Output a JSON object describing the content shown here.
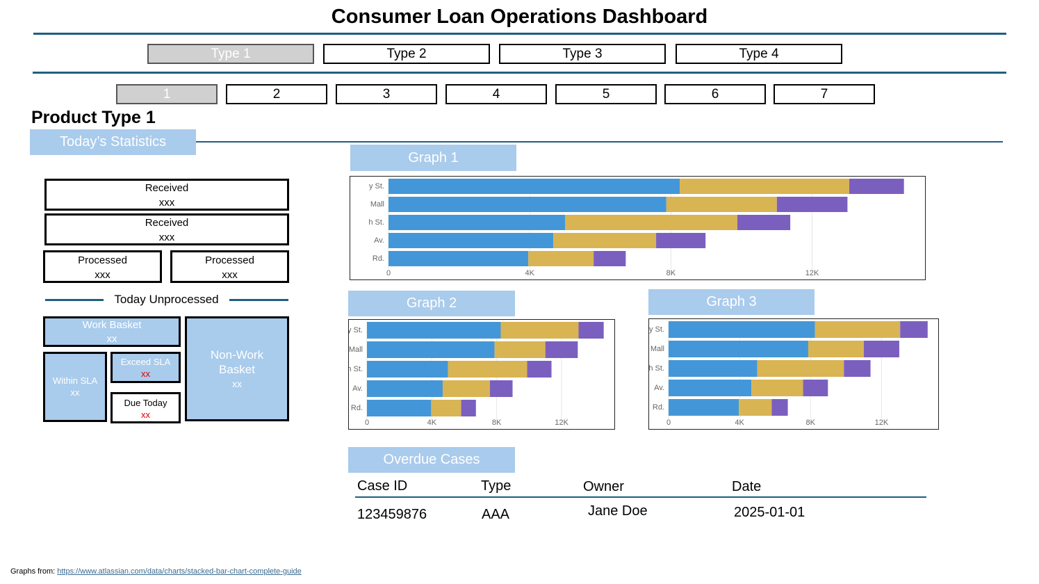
{
  "header": {
    "title": "Consumer Loan Operations Dashboard"
  },
  "type_tabs": [
    "Type 1",
    "Type 2",
    "Type 3",
    "Type 4"
  ],
  "number_tabs": [
    "1",
    "2",
    "3",
    "4",
    "5",
    "6",
    "7"
  ],
  "section": {
    "title": "Product Type 1",
    "statistics_label": "Today’s Statistics"
  },
  "stats": {
    "received": [
      {
        "label": "Received",
        "value": "xxx"
      },
      {
        "label": "Received",
        "value": "xxx"
      }
    ],
    "processed": [
      {
        "label": "Processed",
        "value": "xxx"
      },
      {
        "label": "Processed",
        "value": "xxx"
      }
    ],
    "unprocessed_label": "Today Unprocessed",
    "work_basket": {
      "label": "Work Basket",
      "value": "xx"
    },
    "within_sla": {
      "label": "Within SLA",
      "value": "xx"
    },
    "exceed_sla": {
      "label": "Exceed SLA",
      "value": "xx"
    },
    "due_today": {
      "label": "Due Today",
      "value": "xx"
    },
    "non_work_basket": {
      "label": "Non-Work Basket",
      "value": "xx"
    }
  },
  "chart_data": [
    {
      "type": "bar",
      "title": "Graph 1",
      "orientation": "horizontal",
      "stacked": true,
      "grid": true,
      "categories": [
        "y St.",
        "Mall",
        "h St.",
        "Av.",
        "Rd."
      ],
      "series": [
        {
          "color": "#4397d8",
          "values": [
            8250,
            7870,
            5000,
            4670,
            3960
          ]
        },
        {
          "color": "#d9b453",
          "values": [
            4800,
            3130,
            4880,
            2910,
            1850
          ]
        },
        {
          "color": "#7b5fbf",
          "values": [
            1550,
            2000,
            1500,
            1400,
            910
          ]
        }
      ],
      "xlim": [
        0,
        15000
      ],
      "xticks": [
        0,
        {
          "value": 4000,
          "label": "4K"
        },
        {
          "value": 8000,
          "label": "8K"
        },
        {
          "value": 12000,
          "label": "12K"
        }
      ]
    },
    {
      "type": "bar",
      "title": "Graph 2",
      "orientation": "horizontal",
      "stacked": true,
      "grid": true,
      "categories": [
        "y St.",
        "Mall",
        "h St.",
        "Av.",
        "Rd."
      ],
      "series": [
        {
          "color": "#4397d8",
          "values": [
            8250,
            7870,
            5000,
            4670,
            3960
          ]
        },
        {
          "color": "#d9b453",
          "values": [
            4800,
            3130,
            4880,
            2910,
            1850
          ]
        },
        {
          "color": "#7b5fbf",
          "values": [
            1550,
            2000,
            1500,
            1400,
            910
          ]
        }
      ],
      "xlim": [
        0,
        15000
      ],
      "xticks": [
        0,
        {
          "value": 4000,
          "label": "4K"
        },
        {
          "value": 8000,
          "label": "8K"
        },
        {
          "value": 12000,
          "label": "12K"
        }
      ]
    },
    {
      "type": "bar",
      "title": "Graph 3",
      "orientation": "horizontal",
      "stacked": true,
      "grid": true,
      "categories": [
        "y St.",
        "Mall",
        "h St.",
        "Av.",
        "Rd."
      ],
      "series": [
        {
          "color": "#4397d8",
          "values": [
            8250,
            7870,
            5000,
            4670,
            3960
          ]
        },
        {
          "color": "#d9b453",
          "values": [
            4800,
            3130,
            4880,
            2910,
            1850
          ]
        },
        {
          "color": "#7b5fbf",
          "values": [
            1550,
            2000,
            1500,
            1400,
            910
          ]
        }
      ],
      "xlim": [
        0,
        15000
      ],
      "xticks": [
        0,
        {
          "value": 4000,
          "label": "4K"
        },
        {
          "value": 8000,
          "label": "8K"
        },
        {
          "value": 12000,
          "label": "12K"
        }
      ]
    }
  ],
  "overdue": {
    "title": "Overdue Cases",
    "columns": [
      "Case ID",
      "Type",
      "Owner",
      "Date"
    ],
    "rows": [
      [
        "123459876",
        "AAA",
        "Jane Doe",
        "2025-01-01"
      ]
    ]
  },
  "footer": {
    "label": "Graphs from:",
    "link": "https://www.atlassian.com/data/charts/stacked-bar-chart-complete-guide"
  }
}
